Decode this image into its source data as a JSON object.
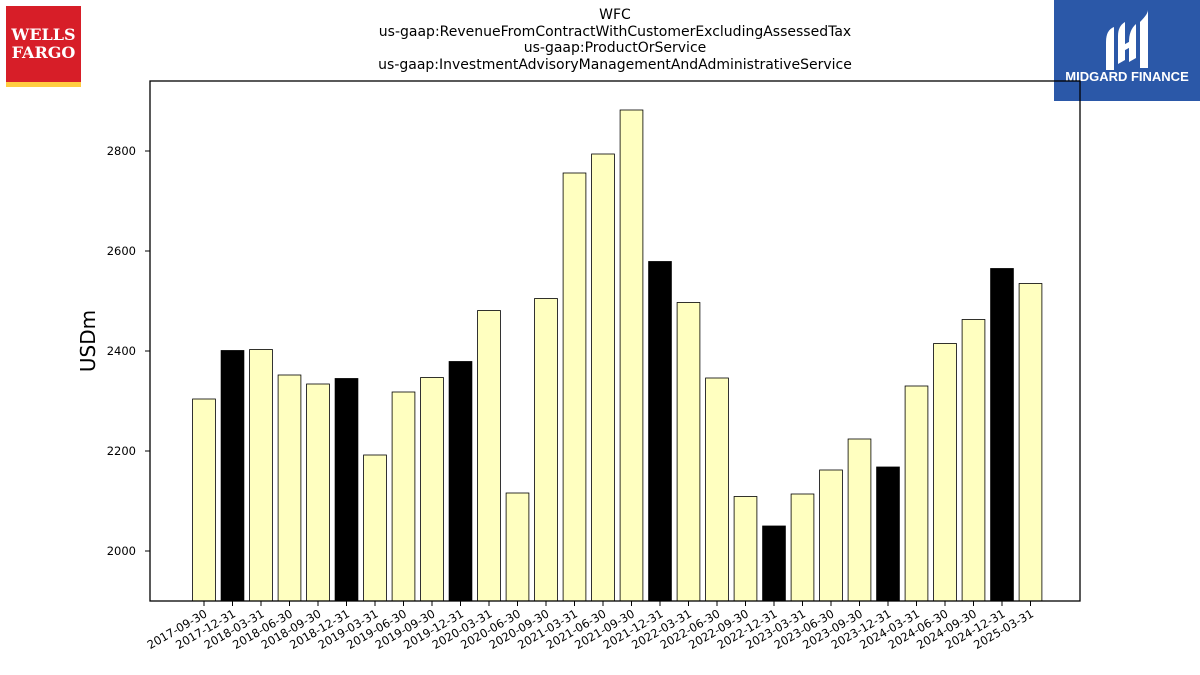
{
  "header": {
    "title_lines": [
      "WFC",
      "us-gaap:RevenueFromContractWithCustomerExcludingAssessedTax",
      "us-gaap:ProductOrService",
      "us-gaap:InvestmentAdvisoryManagementAndAdministrativeService"
    ]
  },
  "logos": {
    "left": {
      "text_line1": "WELLS",
      "text_line2": "FARGO",
      "bg": "#d71e28",
      "stripe": "#ffcd41"
    },
    "right": {
      "text": "MIDGARD FINANCE",
      "bg": "#2b58a8"
    }
  },
  "colors": {
    "bar_default": "#ffffc0",
    "bar_highlight": "#000000",
    "bar_edge": "#000000"
  },
  "chart_data": {
    "type": "bar",
    "title": "WFC\nus-gaap:RevenueFromContractWithCustomerExcludingAssessedTax\nus-gaap:ProductOrService\nus-gaap:InvestmentAdvisoryManagementAndAdministrativeService",
    "xlabel": "",
    "ylabel": "USDm",
    "ylim": [
      1900,
      2940
    ],
    "yticks": [
      2000,
      2200,
      2400,
      2600,
      2800
    ],
    "grid": false,
    "categories": [
      "2017-09-30",
      "2017-12-31",
      "2018-03-31",
      "2018-06-30",
      "2018-09-30",
      "2018-12-31",
      "2019-03-31",
      "2019-06-30",
      "2019-09-30",
      "2019-12-31",
      "2020-03-31",
      "2020-06-30",
      "2020-09-30",
      "2021-03-31",
      "2021-06-30",
      "2021-09-30",
      "2021-12-31",
      "2022-03-31",
      "2022-06-30",
      "2022-09-30",
      "2022-12-31",
      "2023-03-31",
      "2023-06-30",
      "2023-09-30",
      "2023-12-31",
      "2024-03-31",
      "2024-06-30",
      "2024-09-30",
      "2024-12-31",
      "2025-03-31"
    ],
    "values": [
      2304,
      2401,
      2403,
      2352,
      2334,
      2345,
      2192,
      2318,
      2347,
      2379,
      2481,
      2116,
      2505,
      2756,
      2794,
      2882,
      2579,
      2497,
      2346,
      2109,
      2050,
      2114,
      2162,
      2224,
      2168,
      2330,
      2415,
      2463,
      2565,
      2535
    ],
    "highlight": [
      false,
      true,
      false,
      false,
      false,
      true,
      false,
      false,
      false,
      true,
      false,
      false,
      false,
      false,
      false,
      false,
      true,
      false,
      false,
      false,
      true,
      false,
      false,
      false,
      true,
      false,
      false,
      false,
      true,
      false
    ]
  }
}
